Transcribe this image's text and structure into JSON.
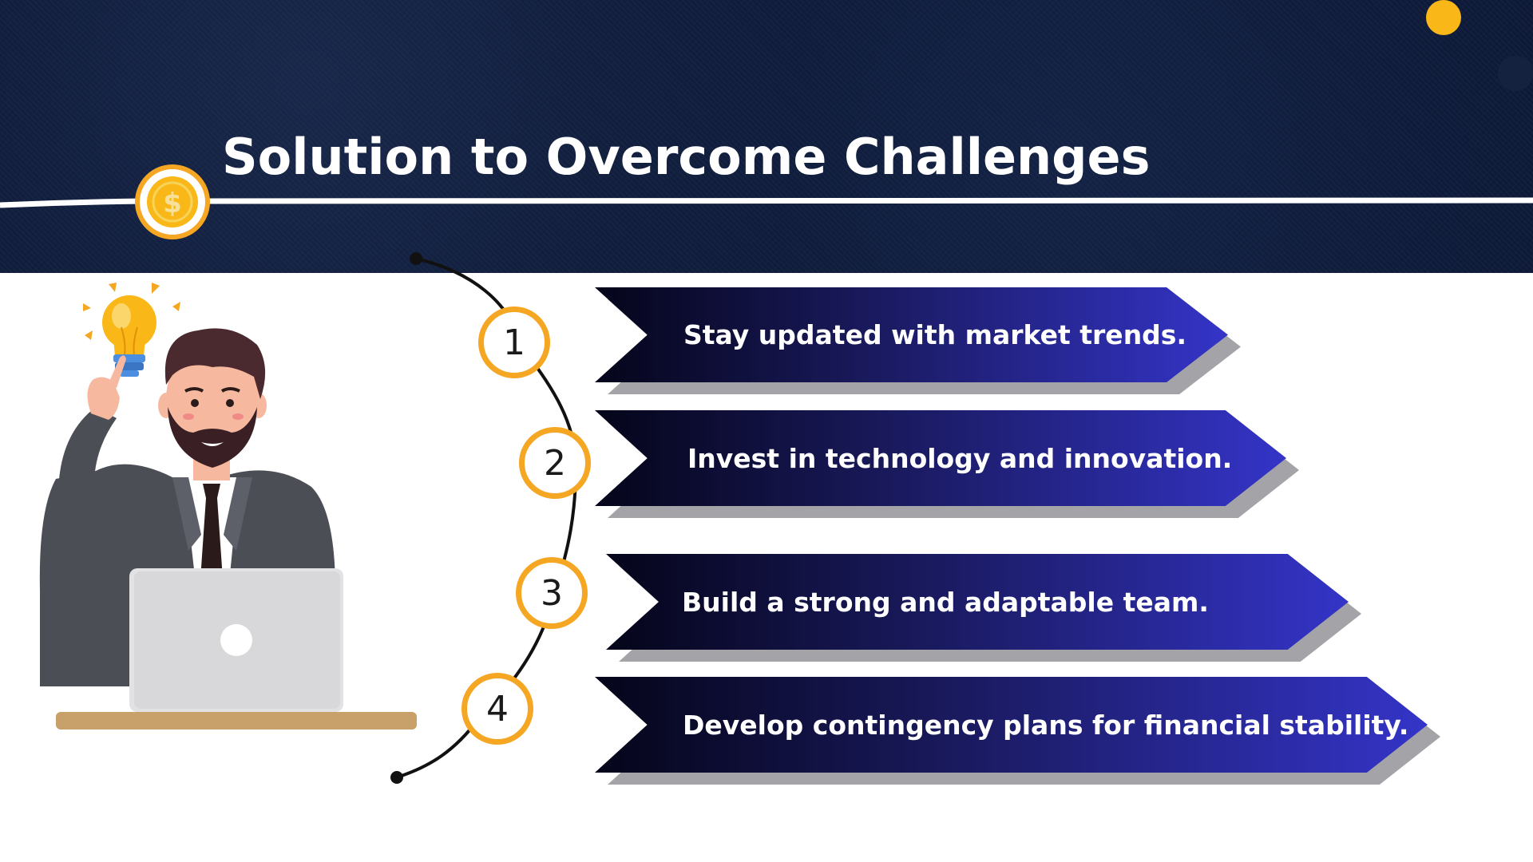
{
  "slide": {
    "title": "Solution to Overcome Challenges",
    "colors": {
      "header_background": "#0d1a38",
      "accent_orange": "#f5a623",
      "accent_yellow": "#f9b817",
      "arrow_gradient_start": "#05051a",
      "arrow_gradient_end": "#3434c8",
      "arrow_shadow": "#a3a3a8"
    },
    "icons": {
      "header_badge": "dollar-coin-icon",
      "illustration": "businessman-with-idea-illustration",
      "idea": "lightbulb-icon"
    },
    "steps": [
      {
        "number": "1",
        "text": "Stay updated with market trends."
      },
      {
        "number": "2",
        "text": "Invest in technology and innovation."
      },
      {
        "number": "3",
        "text": "Build a strong and adaptable team."
      },
      {
        "number": "4",
        "text": "Develop contingency plans for financial stability."
      }
    ]
  }
}
